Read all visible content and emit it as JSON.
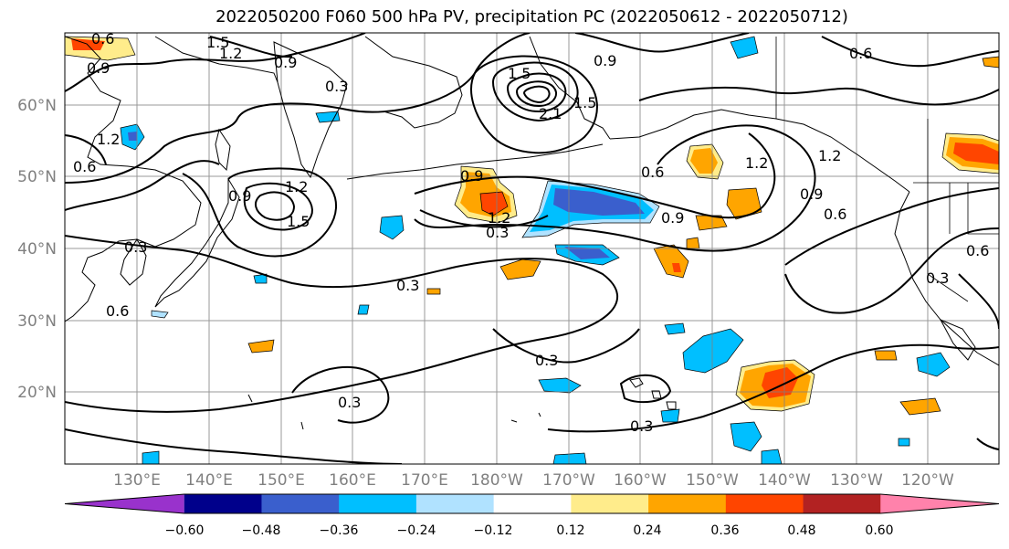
{
  "title": "2022050200 F060 500 hPa PV, precipitation PC (2022050612 - 2022050712)",
  "lat_labels": [
    "60°N",
    "50°N",
    "40°N",
    "30°N",
    "20°N"
  ],
  "lon_labels": [
    "130°E",
    "140°E",
    "150°E",
    "160°E",
    "170°E",
    "180°W",
    "170°W",
    "160°W",
    "150°W",
    "140°W",
    "130°W",
    "120°W"
  ],
  "colorbar": {
    "labels": [
      "−0.60",
      "−0.48",
      "−0.36",
      "−0.24",
      "−0.12",
      "0.12",
      "0.24",
      "0.36",
      "0.48",
      "0.60"
    ],
    "colors": [
      "#9932CC",
      "#00008B",
      "#3A5FCD",
      "#00BFFF",
      "#B0E2FF",
      "#FFFFFF",
      "#FFEC8B",
      "#FFA500",
      "#FF4500",
      "#B22222",
      "#FF82AB"
    ]
  },
  "contour_labels": [
    "0.6",
    "0.9",
    "1.5",
    "1.2",
    "0.9",
    "0.3",
    "0.9",
    "0.6",
    "1.2",
    "1.2",
    "0.9",
    "0.6",
    "1.2",
    "1.5",
    "0.9",
    "0.3",
    "0.6",
    "0.9",
    "1.2",
    "1.2",
    "0.9",
    "0.6",
    "0.3",
    "0.6",
    "0.3",
    "0.3",
    "0.3",
    "0.3",
    "0.3",
    "1.5",
    "0.6",
    "2.1",
    "1.5"
  ]
}
